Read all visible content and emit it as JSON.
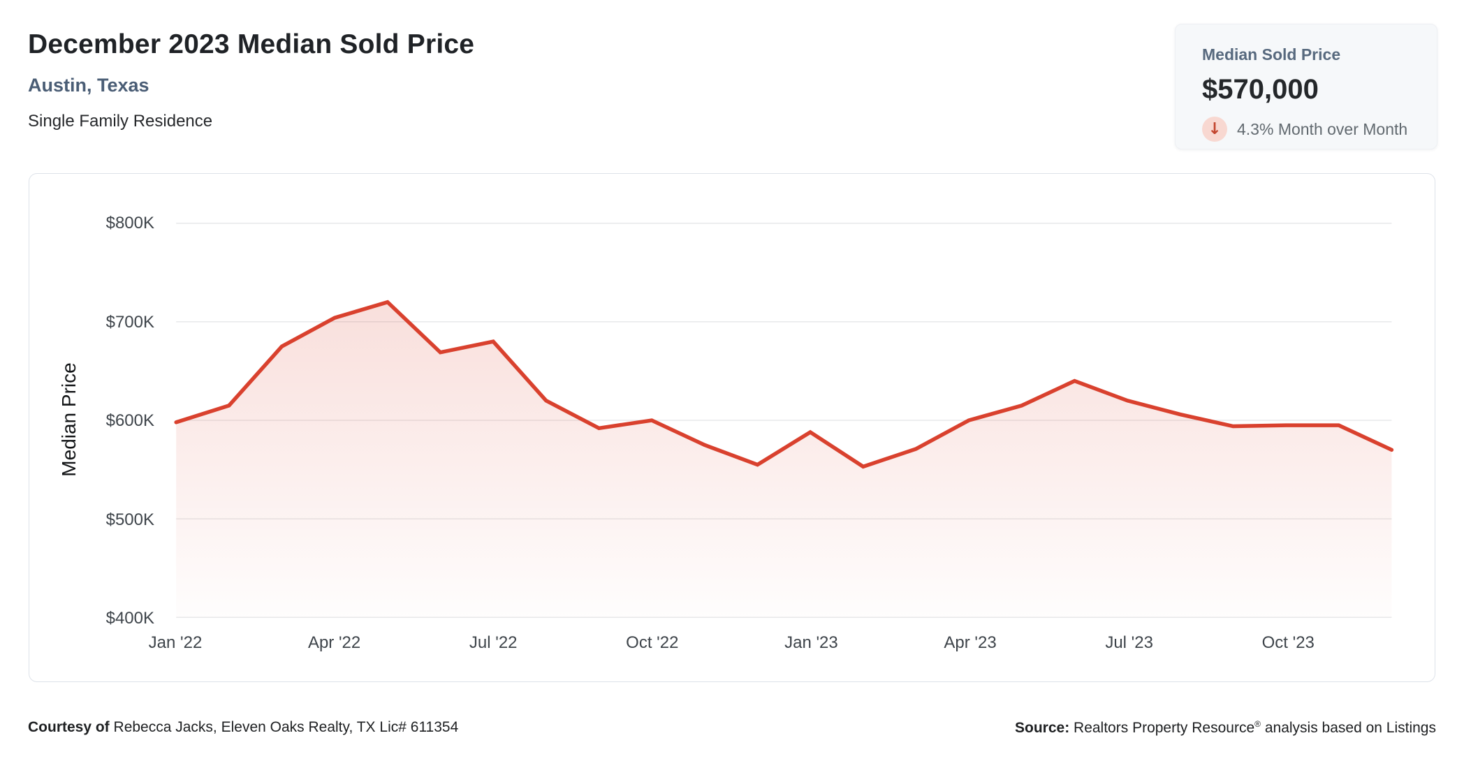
{
  "header": {
    "title": "December 2023 Median Sold Price",
    "location": "Austin, Texas",
    "property_type": "Single Family Residence"
  },
  "stat_card": {
    "label": "Median Sold Price",
    "value": "$570,000",
    "direction": "down",
    "arrow_glyph": "↓",
    "change_text": "4.3% Month over Month"
  },
  "chart_data": {
    "type": "area",
    "title": "",
    "xlabel": "",
    "ylabel": "Median Price",
    "unit": "USD thousands",
    "x": [
      "Jan '22",
      "Feb '22",
      "Mar '22",
      "Apr '22",
      "May '22",
      "Jun '22",
      "Jul '22",
      "Aug '22",
      "Sep '22",
      "Oct '22",
      "Nov '22",
      "Dec '22",
      "Jan '23",
      "Feb '23",
      "Mar '23",
      "Apr '23",
      "May '23",
      "Jun '23",
      "Jul '23",
      "Aug '23",
      "Sep '23",
      "Oct '23",
      "Nov '23",
      "Dec '23"
    ],
    "values": [
      598,
      615,
      675,
      704,
      720,
      669,
      680,
      620,
      592,
      600,
      575,
      555,
      588,
      553,
      571,
      600,
      615,
      640,
      620,
      606,
      594,
      595,
      595,
      570
    ],
    "ylim": [
      400,
      800
    ],
    "yticks": [
      {
        "label": "$800K",
        "value": 800
      },
      {
        "label": "$700K",
        "value": 700
      },
      {
        "label": "$600K",
        "value": 600
      },
      {
        "label": "$500K",
        "value": 500
      },
      {
        "label": "$400K",
        "value": 400
      }
    ],
    "xticks": [
      "Jan '22",
      "Apr '22",
      "Jul '22",
      "Oct '22",
      "Jan '23",
      "Apr '23",
      "Jul '23",
      "Oct '23"
    ],
    "grid": true,
    "legend": "none",
    "line_color": "#d9412e",
    "fill_color": "#f9e0db",
    "gridline_color": "#e7e8ea"
  },
  "footer": {
    "courtesy_bold": "Courtesy of",
    "courtesy_rest": " Rebecca Jacks, Eleven Oaks Realty, TX Lic# 611354",
    "source_bold": "Source:",
    "source_pre": " Realtors Property Resource",
    "source_sup": "®",
    "source_post": " analysis based on Listings"
  }
}
